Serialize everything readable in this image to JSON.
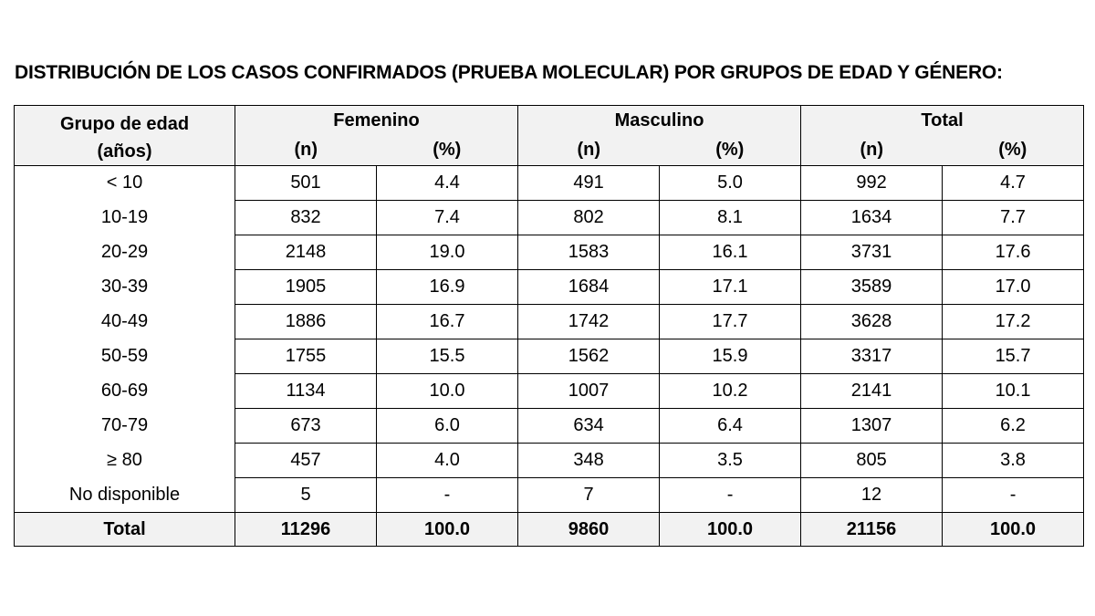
{
  "title": "DISTRIBUCIÓN DE LOS CASOS CONFIRMADOS (PRUEBA MOLECULAR) POR GRUPOS DE EDAD Y GÉNERO:",
  "header": {
    "age_line1": "Grupo de edad",
    "age_line2": "(años)",
    "groups": [
      "Femenino",
      "Masculino",
      "Total"
    ],
    "n_label": "(n)",
    "pct_label": "(%)"
  },
  "rows": [
    {
      "age": "< 10",
      "f_n": "501",
      "f_p": "4.4",
      "m_n": "491",
      "m_p": "5.0",
      "t_n": "992",
      "t_p": "4.7"
    },
    {
      "age": "10-19",
      "f_n": "832",
      "f_p": "7.4",
      "m_n": "802",
      "m_p": "8.1",
      "t_n": "1634",
      "t_p": "7.7"
    },
    {
      "age": "20-29",
      "f_n": "2148",
      "f_p": "19.0",
      "m_n": "1583",
      "m_p": "16.1",
      "t_n": "3731",
      "t_p": "17.6"
    },
    {
      "age": "30-39",
      "f_n": "1905",
      "f_p": "16.9",
      "m_n": "1684",
      "m_p": "17.1",
      "t_n": "3589",
      "t_p": "17.0"
    },
    {
      "age": "40-49",
      "f_n": "1886",
      "f_p": "16.7",
      "m_n": "1742",
      "m_p": "17.7",
      "t_n": "3628",
      "t_p": "17.2"
    },
    {
      "age": "50-59",
      "f_n": "1755",
      "f_p": "15.5",
      "m_n": "1562",
      "m_p": "15.9",
      "t_n": "3317",
      "t_p": "15.7"
    },
    {
      "age": "60-69",
      "f_n": "1134",
      "f_p": "10.0",
      "m_n": "1007",
      "m_p": "10.2",
      "t_n": "2141",
      "t_p": "10.1"
    },
    {
      "age": "70-79",
      "f_n": "673",
      "f_p": "6.0",
      "m_n": "634",
      "m_p": "6.4",
      "t_n": "1307",
      "t_p": "6.2"
    },
    {
      "age": "≥ 80",
      "f_n": "457",
      "f_p": "4.0",
      "m_n": "348",
      "m_p": "3.5",
      "t_n": "805",
      "t_p": "3.8"
    },
    {
      "age": "No disponible",
      "f_n": "5",
      "f_p": "-",
      "m_n": "7",
      "m_p": "-",
      "t_n": "12",
      "t_p": "-"
    }
  ],
  "total": {
    "age": "Total",
    "f_n": "11296",
    "f_p": "100.0",
    "m_n": "9860",
    "m_p": "100.0",
    "t_n": "21156",
    "t_p": "100.0"
  }
}
